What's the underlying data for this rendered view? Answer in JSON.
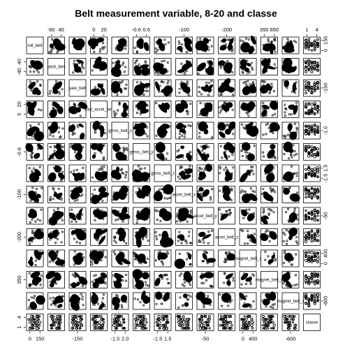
{
  "chart_data": {
    "type": "scatter",
    "subtype": "scatterplot-matrix",
    "title": "Belt measurement variable, 8-20 and classe",
    "variables": [
      "roll_belt",
      "pitch_belt",
      "yaw_belt",
      "total_accel_belt",
      "gyros_belt_x",
      "gyros_belt_y",
      "gyros_belt_z",
      "accel_belt_x",
      "accel_belt_y",
      "accel_belt_z",
      "magnet_belt_x",
      "magnet_belt_y",
      "magnet_belt_z",
      "classe"
    ],
    "panel_labels": [
      "roll_belt",
      "pitch_belt",
      "yaw_belt",
      "total_accel_belt",
      "gyros_belt_x",
      "gyros_belt_y",
      "gyros_belt_z",
      "accel_belt_x",
      "accel_belt_y",
      "accel_belt_z",
      "magnet_belt_x",
      "magnet_belt_y",
      "magnet_belt_z",
      "classe"
    ],
    "ticks": [
      {
        "side": "top",
        "panel": 2,
        "labels": [
          "-60",
          "40"
        ]
      },
      {
        "side": "top",
        "panel": 4,
        "labels": [
          "0",
          "20"
        ]
      },
      {
        "side": "top",
        "panel": 6,
        "labels": [
          "-0.6",
          "0.6"
        ]
      },
      {
        "side": "top",
        "panel": 8,
        "labels": [
          "-100"
        ]
      },
      {
        "side": "top",
        "panel": 10,
        "labels": [
          "-200"
        ]
      },
      {
        "side": "top",
        "panel": 12,
        "labels": [
          "350",
          "650"
        ]
      },
      {
        "side": "top",
        "panel": 14,
        "labels": [
          "1",
          "4"
        ]
      },
      {
        "side": "bottom",
        "panel": 1,
        "labels": [
          "0",
          "150"
        ]
      },
      {
        "side": "bottom",
        "panel": 3,
        "labels": [
          "-150"
        ]
      },
      {
        "side": "bottom",
        "panel": 5,
        "labels": [
          "-1.0",
          "2.0"
        ]
      },
      {
        "side": "bottom",
        "panel": 7,
        "labels": [
          "-1.5",
          "1.5"
        ]
      },
      {
        "side": "bottom",
        "panel": 9,
        "labels": [
          "-50"
        ]
      },
      {
        "side": "bottom",
        "panel": 11,
        "labels": [
          "0",
          "400"
        ]
      },
      {
        "side": "bottom",
        "panel": 13,
        "labels": [
          "-600"
        ]
      },
      {
        "side": "left",
        "panel": 2,
        "labels": [
          "-40",
          "40"
        ]
      },
      {
        "side": "left",
        "panel": 4,
        "labels": [
          "0",
          "20"
        ]
      },
      {
        "side": "left",
        "panel": 6,
        "labels": [
          "-0.6"
        ]
      },
      {
        "side": "left",
        "panel": 8,
        "labels": [
          "-100"
        ]
      },
      {
        "side": "left",
        "panel": 10,
        "labels": [
          "-200"
        ]
      },
      {
        "side": "left",
        "panel": 12,
        "labels": [
          "350"
        ]
      },
      {
        "side": "left",
        "panel": 14,
        "labels": [
          "1",
          "4"
        ]
      },
      {
        "side": "right",
        "panel": 1,
        "labels": [
          "0",
          "150"
        ]
      },
      {
        "side": "right",
        "panel": 3,
        "labels": [
          "-150"
        ]
      },
      {
        "side": "right",
        "panel": 5,
        "labels": [
          "-1.0"
        ]
      },
      {
        "side": "right",
        "panel": 7,
        "labels": [
          "-1.5",
          "1.5"
        ]
      },
      {
        "side": "right",
        "panel": 9,
        "labels": [
          "-50"
        ]
      },
      {
        "side": "right",
        "panel": 11,
        "labels": [
          "0",
          "400"
        ]
      },
      {
        "side": "right",
        "panel": 13,
        "labels": [
          "-600"
        ]
      }
    ],
    "point_color": "#000000",
    "background": "#ffffff"
  }
}
